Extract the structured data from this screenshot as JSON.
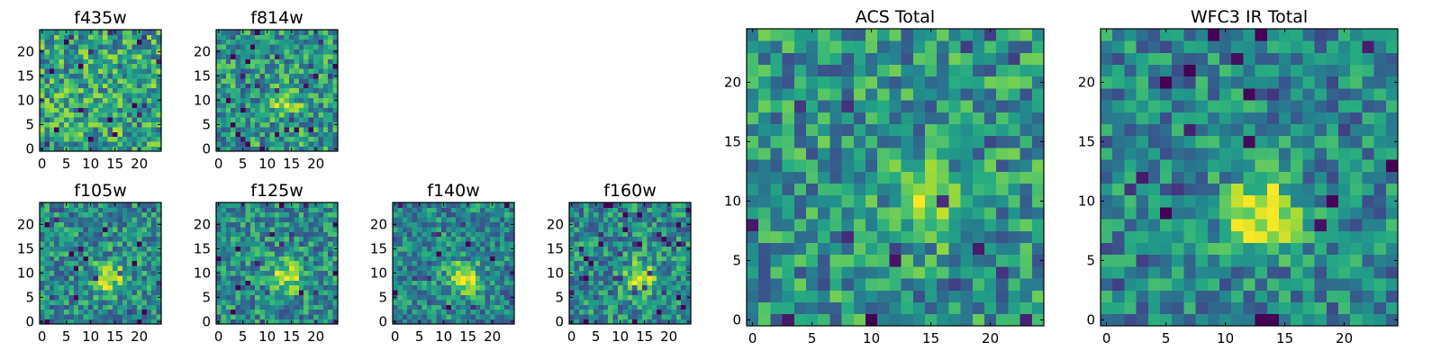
{
  "colormap": "viridis",
  "chart_data": [
    {
      "type": "heatmap",
      "title": "f435w",
      "grid": [
        25,
        25
      ],
      "xticks": [
        0,
        5,
        10,
        15,
        20
      ],
      "yticks": [
        0,
        5,
        10,
        15,
        20
      ],
      "xlim": [
        -0.5,
        24.5
      ],
      "ylim": [
        -0.5,
        24.5
      ],
      "source_peak": [
        14,
        9
      ],
      "source_strength": 0.05,
      "seed": 11
    },
    {
      "type": "heatmap",
      "title": "f814w",
      "grid": [
        25,
        25
      ],
      "xticks": [
        0,
        5,
        10,
        15,
        20
      ],
      "yticks": [
        0,
        5,
        10,
        15,
        20
      ],
      "xlim": [
        -0.5,
        24.5
      ],
      "ylim": [
        -0.5,
        24.5
      ],
      "source_peak": [
        14,
        9
      ],
      "source_strength": 0.25,
      "seed": 23
    },
    {
      "type": "heatmap",
      "title": "f105w",
      "grid": [
        25,
        25
      ],
      "xticks": [
        0,
        5,
        10,
        15,
        20
      ],
      "yticks": [
        0,
        5,
        10,
        15,
        20
      ],
      "xlim": [
        -0.5,
        24.5
      ],
      "ylim": [
        -0.5,
        24.5
      ],
      "source_peak": [
        14,
        9
      ],
      "source_strength": 0.45,
      "seed": 37
    },
    {
      "type": "heatmap",
      "title": "f125w",
      "grid": [
        25,
        25
      ],
      "xticks": [
        0,
        5,
        10,
        15,
        20
      ],
      "yticks": [
        0,
        5,
        10,
        15,
        20
      ],
      "xlim": [
        -0.5,
        24.5
      ],
      "ylim": [
        -0.5,
        24.5
      ],
      "source_peak": [
        14,
        9
      ],
      "source_strength": 0.45,
      "seed": 41
    },
    {
      "type": "heatmap",
      "title": "f140w",
      "grid": [
        25,
        25
      ],
      "xticks": [
        0,
        5,
        10,
        15,
        20
      ],
      "yticks": [
        0,
        5,
        10,
        15,
        20
      ],
      "xlim": [
        -0.5,
        24.5
      ],
      "ylim": [
        -0.5,
        24.5
      ],
      "source_peak": [
        14,
        9
      ],
      "source_strength": 0.55,
      "seed": 53
    },
    {
      "type": "heatmap",
      "title": "f160w",
      "grid": [
        25,
        25
      ],
      "xticks": [
        0,
        5,
        10,
        15,
        20
      ],
      "yticks": [
        0,
        5,
        10,
        15,
        20
      ],
      "xlim": [
        -0.5,
        24.5
      ],
      "ylim": [
        -0.5,
        24.5
      ],
      "source_peak": [
        14,
        9
      ],
      "source_strength": 0.45,
      "seed": 67
    },
    {
      "type": "heatmap",
      "title": "ACS Total",
      "grid": [
        25,
        25
      ],
      "xticks": [
        0,
        5,
        10,
        15,
        20
      ],
      "yticks": [
        0,
        5,
        10,
        15,
        20
      ],
      "xlim": [
        -0.5,
        24.5
      ],
      "ylim": [
        -0.5,
        24.5
      ],
      "source_peak": [
        14,
        10
      ],
      "source_strength": 0.3,
      "seed": 79
    },
    {
      "type": "heatmap",
      "title": "WFC3 IR Total",
      "grid": [
        25,
        25
      ],
      "xticks": [
        0,
        5,
        10,
        15,
        20
      ],
      "yticks": [
        0,
        5,
        10,
        15,
        20
      ],
      "xlim": [
        -0.5,
        24.5
      ],
      "ylim": [
        -0.5,
        24.5
      ],
      "source_peak": [
        13,
        9
      ],
      "source_strength": 0.55,
      "seed": 97
    }
  ]
}
